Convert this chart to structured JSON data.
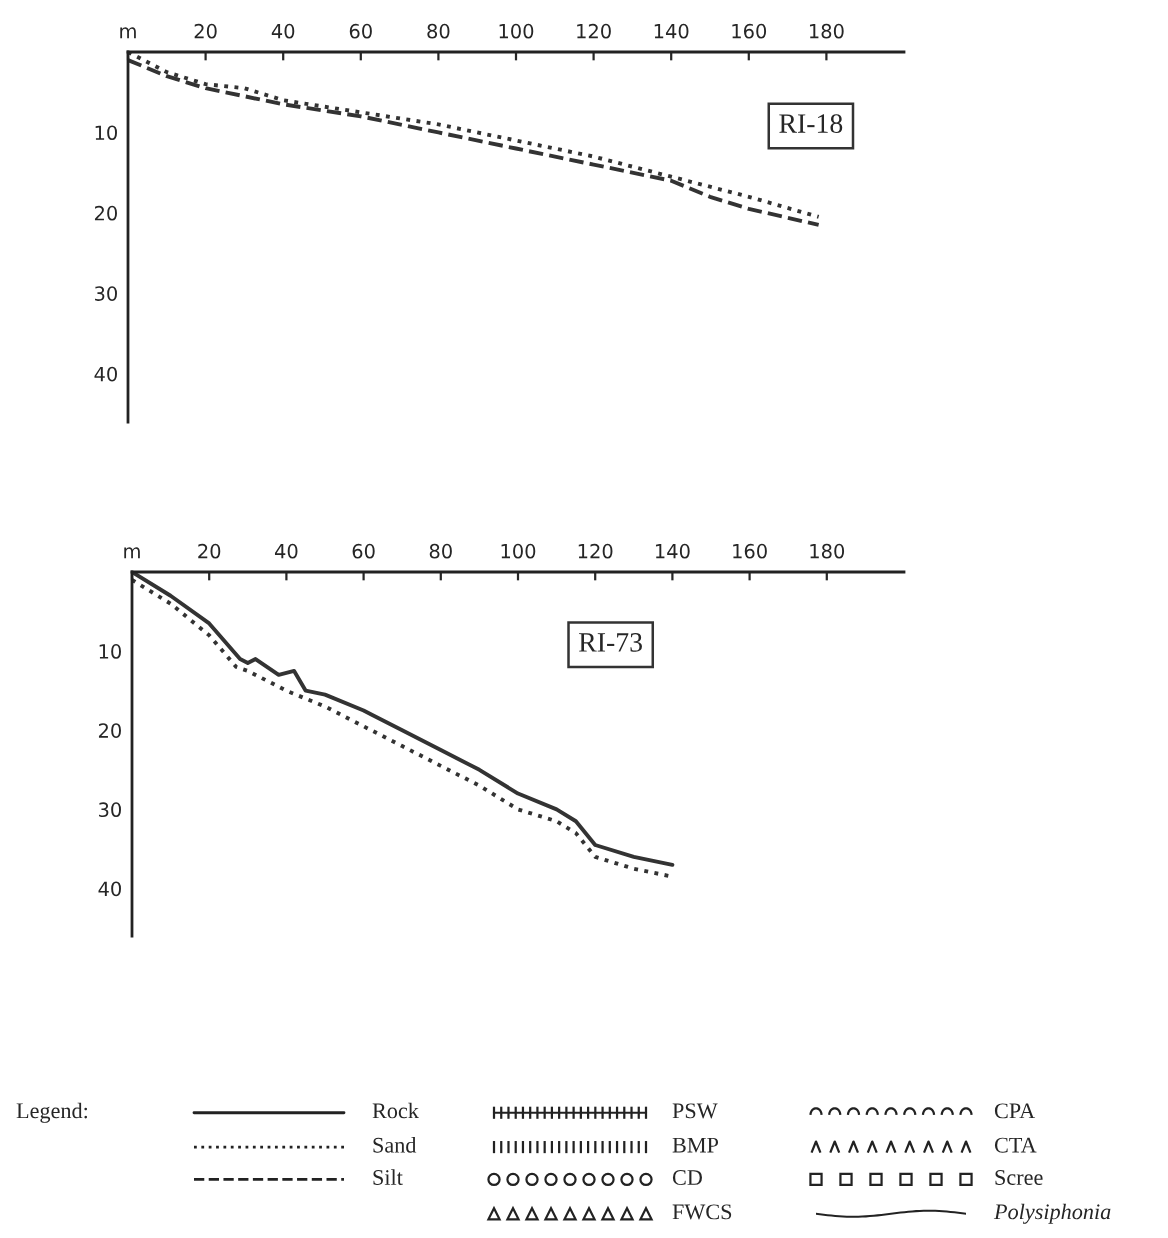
{
  "chart_data": [
    {
      "type": "line",
      "annotations": [
        "RI-18"
      ],
      "xlim": [
        0,
        200
      ],
      "ylim": [
        46,
        0
      ],
      "xticks": [
        {
          "value": 0,
          "label": "m"
        },
        20,
        40,
        60,
        80,
        100,
        120,
        140,
        160,
        180
      ],
      "yticks": [
        10,
        20,
        30,
        40
      ],
      "grid": false,
      "series": [
        {
          "color": "#333333",
          "line_style": "dotted",
          "x": [
            0,
            10,
            20,
            30,
            40,
            60,
            80,
            100,
            120,
            140,
            160,
            178
          ],
          "values": [
            0,
            2.5,
            4,
            4.5,
            6,
            7.5,
            9,
            11,
            13,
            15.5,
            18,
            20.5
          ]
        },
        {
          "color": "#333333",
          "line_style": "dashed",
          "x": [
            0,
            10,
            20,
            30,
            40,
            60,
            80,
            100,
            120,
            140,
            150,
            160,
            178
          ],
          "values": [
            1,
            3,
            4.5,
            5.5,
            6.5,
            8,
            10,
            12,
            14,
            16,
            18,
            19.5,
            21.5
          ]
        }
      ]
    },
    {
      "type": "line",
      "annotations": [
        "RI-73"
      ],
      "xlim": [
        0,
        200
      ],
      "ylim": [
        46,
        0
      ],
      "xticks": [
        {
          "value": 0,
          "label": "m"
        },
        20,
        40,
        60,
        80,
        100,
        120,
        140,
        160,
        180
      ],
      "yticks": [
        10,
        20,
        30,
        40
      ],
      "grid": false,
      "series": [
        {
          "color": "#333333",
          "line_style": "solid",
          "x": [
            0,
            10,
            20,
            28,
            30,
            32,
            38,
            42,
            45,
            50,
            60,
            62,
            70,
            80,
            90,
            100,
            110,
            115,
            120,
            130,
            140
          ],
          "values": [
            0,
            3,
            6.5,
            11,
            11.5,
            11,
            13,
            12.5,
            15,
            15.5,
            17.5,
            18,
            20,
            22.5,
            25,
            28,
            30,
            31.5,
            34.5,
            36,
            37
          ]
        },
        {
          "color": "#333333",
          "line_style": "dotted",
          "x": [
            0,
            10,
            20,
            27,
            30,
            40,
            50,
            60,
            70,
            80,
            90,
            100,
            110,
            115,
            120,
            130,
            140
          ],
          "values": [
            1,
            4,
            8,
            12,
            12.5,
            15,
            17,
            19.5,
            22,
            24.5,
            27,
            30,
            31.5,
            33,
            36,
            37.5,
            38.5
          ]
        }
      ]
    },
    {
      "type": "other",
      "annotations": [
        "Legend:",
        "Rock",
        "Sand",
        "Silt",
        "PSW",
        "BMP",
        "CD",
        "FWCS",
        "CPA",
        "CTA",
        "Scree",
        "Polysiphonia"
      ]
    }
  ]
}
